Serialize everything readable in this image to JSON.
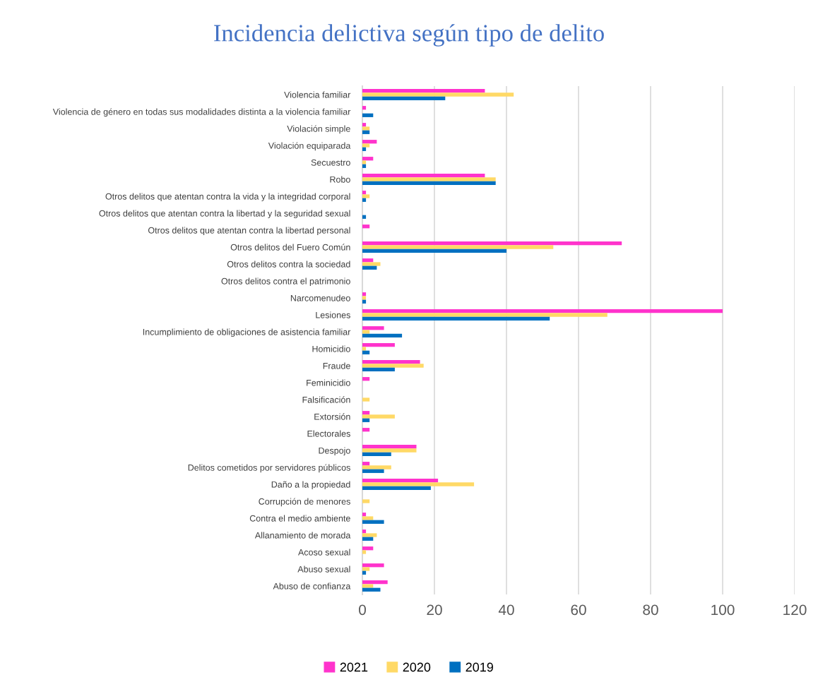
{
  "chart_data": {
    "type": "bar",
    "orientation": "horizontal",
    "title": "Incidencia delictiva según tipo de delito",
    "categories": [
      "Violencia familiar",
      "Violencia de género en todas sus modalidades distinta a la violencia familiar",
      "Violación simple",
      "Violación equiparada",
      "Secuestro",
      "Robo",
      "Otros delitos que atentan contra la vida y la integridad corporal",
      "Otros delitos que atentan contra la libertad y la seguridad sexual",
      "Otros delitos que atentan contra la libertad personal",
      "Otros delitos del Fuero Común",
      "Otros delitos contra la sociedad",
      "Otros delitos contra el patrimonio",
      "Narcomenudeo",
      "Lesiones",
      "Incumplimiento de obligaciones de asistencia familiar",
      "Homicidio",
      "Fraude",
      "Feminicidio",
      "Falsificación",
      "Extorsión",
      "Electorales",
      "Despojo",
      "Delitos cometidos por servidores públicos",
      "Daño a la propiedad",
      "Corrupción de menores",
      "Contra el medio ambiente",
      "Allanamiento de morada",
      "Acoso sexual",
      "Abuso sexual",
      "Abuso de confianza"
    ],
    "series": [
      {
        "name": "2021",
        "color": "#ff33cc",
        "values": [
          34,
          1,
          1,
          4,
          3,
          34,
          1,
          0,
          2,
          72,
          3,
          0,
          1,
          100,
          6,
          9,
          16,
          2,
          0,
          2,
          2,
          15,
          2,
          21,
          0,
          1,
          1,
          3,
          6,
          7
        ]
      },
      {
        "name": "2020",
        "color": "#ffd966",
        "values": [
          42,
          0,
          2,
          2,
          1,
          37,
          2,
          0,
          0,
          53,
          5,
          0,
          1,
          68,
          2,
          1,
          17,
          0,
          2,
          9,
          0,
          15,
          8,
          31,
          2,
          3,
          4,
          1,
          2,
          3
        ]
      },
      {
        "name": "2019",
        "color": "#0070c0",
        "values": [
          23,
          3,
          2,
          1,
          1,
          37,
          1,
          1,
          0,
          40,
          4,
          0,
          1,
          52,
          11,
          2,
          9,
          0,
          0,
          2,
          0,
          8,
          6,
          19,
          0,
          6,
          3,
          0,
          1,
          5
        ]
      }
    ],
    "xlim": [
      0,
      120
    ],
    "xticks": [
      0,
      20,
      40,
      60,
      80,
      100,
      120
    ],
    "grid": "x",
    "legend": "bottom"
  }
}
